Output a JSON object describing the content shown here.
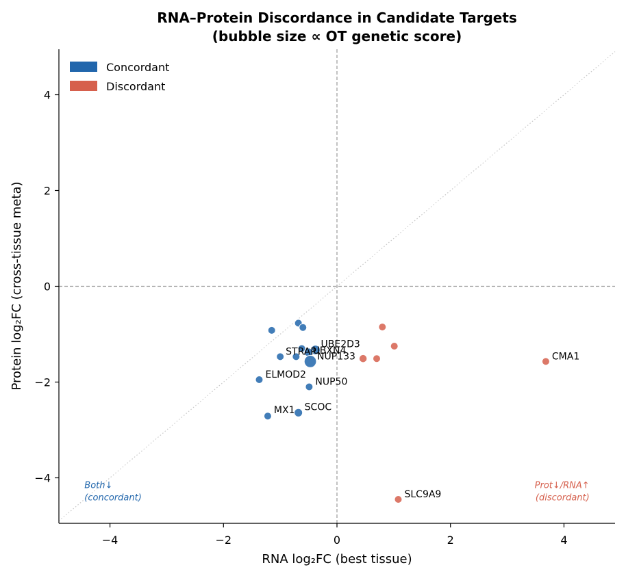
{
  "chart_data": {
    "type": "scatter",
    "title": "RNA–Protein Discordance in Candidate Targets",
    "subtitle": "(bubble size ∝ OT genetic score)",
    "xlabel": "RNA log₂FC (best tissue)",
    "ylabel": "Protein log₂FC (cross-tissue meta)",
    "xlim": [
      -4.9,
      4.9
    ],
    "ylim": [
      -4.95,
      4.95
    ],
    "xticks": [
      -4,
      -2,
      0,
      2,
      4
    ],
    "yticks": [
      -4,
      -2,
      0,
      2,
      4
    ],
    "xtick_labels": [
      "−4",
      "−2",
      "0",
      "2",
      "4"
    ],
    "ytick_labels": [
      "−4",
      "−2",
      "0",
      "2",
      "4"
    ],
    "grid": false,
    "reference_lines": {
      "x0": true,
      "y0": true,
      "diagonal": true
    },
    "legend": {
      "placement": "top-left",
      "entries": [
        {
          "label": "Concordant",
          "color": "#2166ac"
        },
        {
          "label": "Discordant",
          "color": "#d6604d"
        }
      ]
    },
    "quadrant_labels": [
      {
        "lines": [
          "Both↓",
          "(concordant)"
        ],
        "color": "#2166ac",
        "x": -4.45,
        "y": -4.3,
        "anchor": "start"
      },
      {
        "lines": [
          "Prot↓/RNA↑",
          "(discordant)"
        ],
        "color": "#d6604d",
        "x": 4.45,
        "y": -4.3,
        "anchor": "end"
      }
    ],
    "series": [
      {
        "name": "Concordant",
        "color": "#2166ac",
        "points": [
          {
            "x": -1.15,
            "y": -0.92,
            "size": 1.0,
            "label": ""
          },
          {
            "x": -0.68,
            "y": -0.77,
            "size": 1.0,
            "label": ""
          },
          {
            "x": -0.6,
            "y": -0.86,
            "size": 1.0,
            "label": ""
          },
          {
            "x": -0.62,
            "y": -1.3,
            "size": 1.0,
            "label": ""
          },
          {
            "x": -1.0,
            "y": -1.47,
            "size": 1.0,
            "label": "STRAP"
          },
          {
            "x": -0.72,
            "y": -1.47,
            "size": 1.0,
            "label": ""
          },
          {
            "x": -0.38,
            "y": -1.33,
            "size": 1.6,
            "label": "UBE2D3"
          },
          {
            "x": -0.5,
            "y": -1.38,
            "size": 1.3,
            "label": "UBXN4"
          },
          {
            "x": -0.47,
            "y": -1.57,
            "size": 2.6,
            "label": "NUP133"
          },
          {
            "x": -1.37,
            "y": -1.95,
            "size": 1.0,
            "label": "ELMOD2"
          },
          {
            "x": -0.49,
            "y": -2.1,
            "size": 1.0,
            "label": "NUP50"
          },
          {
            "x": -1.22,
            "y": -2.71,
            "size": 1.0,
            "label": "MX1"
          },
          {
            "x": -0.68,
            "y": -2.64,
            "size": 1.2,
            "label": "SCOC"
          }
        ]
      },
      {
        "name": "Discordant",
        "color": "#d6604d",
        "points": [
          {
            "x": 0.8,
            "y": -0.85,
            "size": 1.0,
            "label": ""
          },
          {
            "x": 1.01,
            "y": -1.25,
            "size": 1.0,
            "label": ""
          },
          {
            "x": 0.46,
            "y": -1.51,
            "size": 1.1,
            "label": ""
          },
          {
            "x": 0.7,
            "y": -1.51,
            "size": 1.0,
            "label": ""
          },
          {
            "x": 3.68,
            "y": -1.57,
            "size": 1.0,
            "label": "CMA1"
          },
          {
            "x": 1.08,
            "y": -4.45,
            "size": 1.0,
            "label": "SLC9A9"
          }
        ]
      }
    ]
  }
}
